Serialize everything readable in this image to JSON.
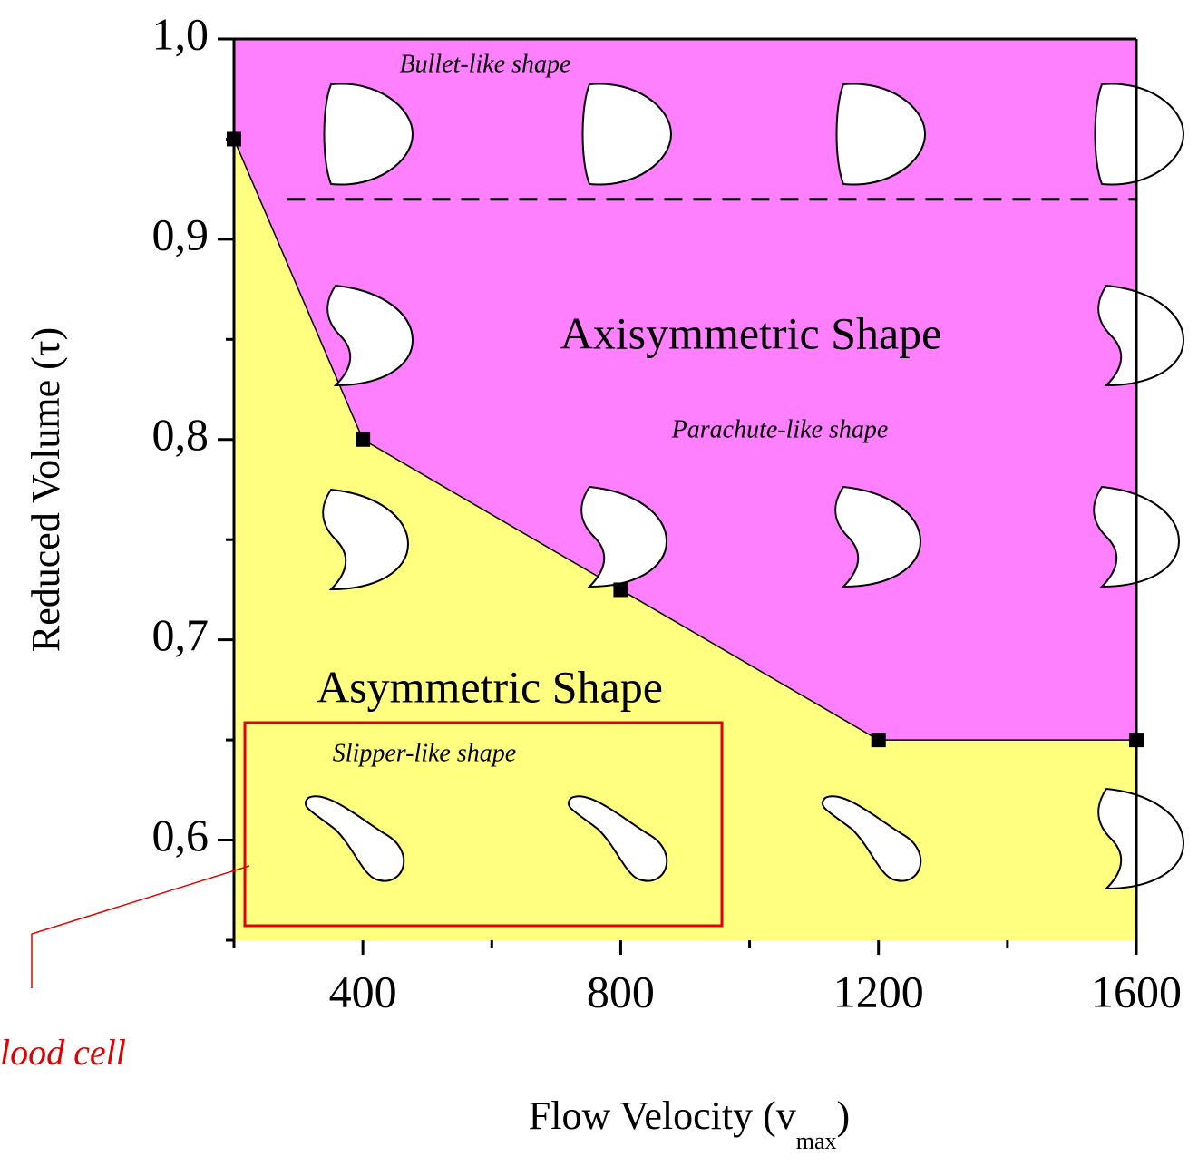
{
  "chart_data": {
    "type": "phase",
    "xlabel": [
      "Flow Velocity (v",
      "max",
      ")"
    ],
    "ylabel": "Reduced Volume (τ)",
    "xlim": [
      200,
      1600
    ],
    "ylim": [
      0.55,
      1.0
    ],
    "xticks": [
      400,
      800,
      1200,
      1600
    ],
    "xminor_ticks": [
      200,
      600,
      1000,
      1400
    ],
    "yticks": [
      {
        "value": 1.0,
        "label": "1,0"
      },
      {
        "value": 0.9,
        "label": "0,9"
      },
      {
        "value": 0.8,
        "label": "0,8"
      },
      {
        "value": 0.7,
        "label": "0,7"
      },
      {
        "value": 0.6,
        "label": "0,6"
      }
    ],
    "yminor_ticks": [
      0.95,
      0.85,
      0.75,
      0.65,
      0.55
    ],
    "boundary": {
      "x": [
        200,
        400,
        800,
        1200,
        1600
      ],
      "y": [
        0.95,
        0.8,
        0.725,
        0.65,
        0.65
      ]
    },
    "dashed_y": 0.92,
    "upper_color": "#ff80ff",
    "lower_color": "#ffff80",
    "regions": {
      "upper": "Axisymmetric Shape",
      "lower": "Asymmetric Shape"
    },
    "shape_labels": [
      "Bullet-like shape",
      "Parachute-like shape",
      "Slipper-like shape"
    ],
    "annotation": "lood cell"
  }
}
